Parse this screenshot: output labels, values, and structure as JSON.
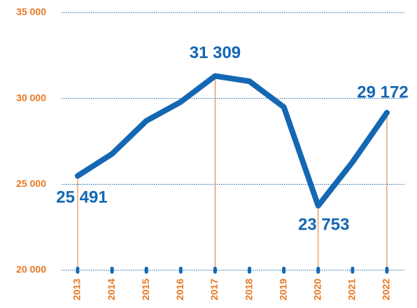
{
  "chart_data": {
    "type": "line",
    "categories": [
      "2013",
      "2014",
      "2015",
      "2016",
      "2017",
      "2018",
      "2019",
      "2020",
      "2021",
      "2022"
    ],
    "values": [
      25491,
      26770,
      28700,
      29800,
      31309,
      31000,
      29500,
      23753,
      26300,
      29172
    ],
    "value_labels": [
      "25 491",
      null,
      null,
      null,
      "31 309",
      null,
      null,
      "23 753",
      null,
      "29 172"
    ],
    "color": "#1467b3",
    "ylim": [
      20000,
      35000
    ],
    "yticks": [
      {
        "value": 20000,
        "label": "20 000"
      },
      {
        "value": 25000,
        "label": "25 000"
      },
      {
        "value": 30000,
        "label": "30 000"
      },
      {
        "value": 35000,
        "label": "35 000"
      }
    ],
    "grid": true
  }
}
